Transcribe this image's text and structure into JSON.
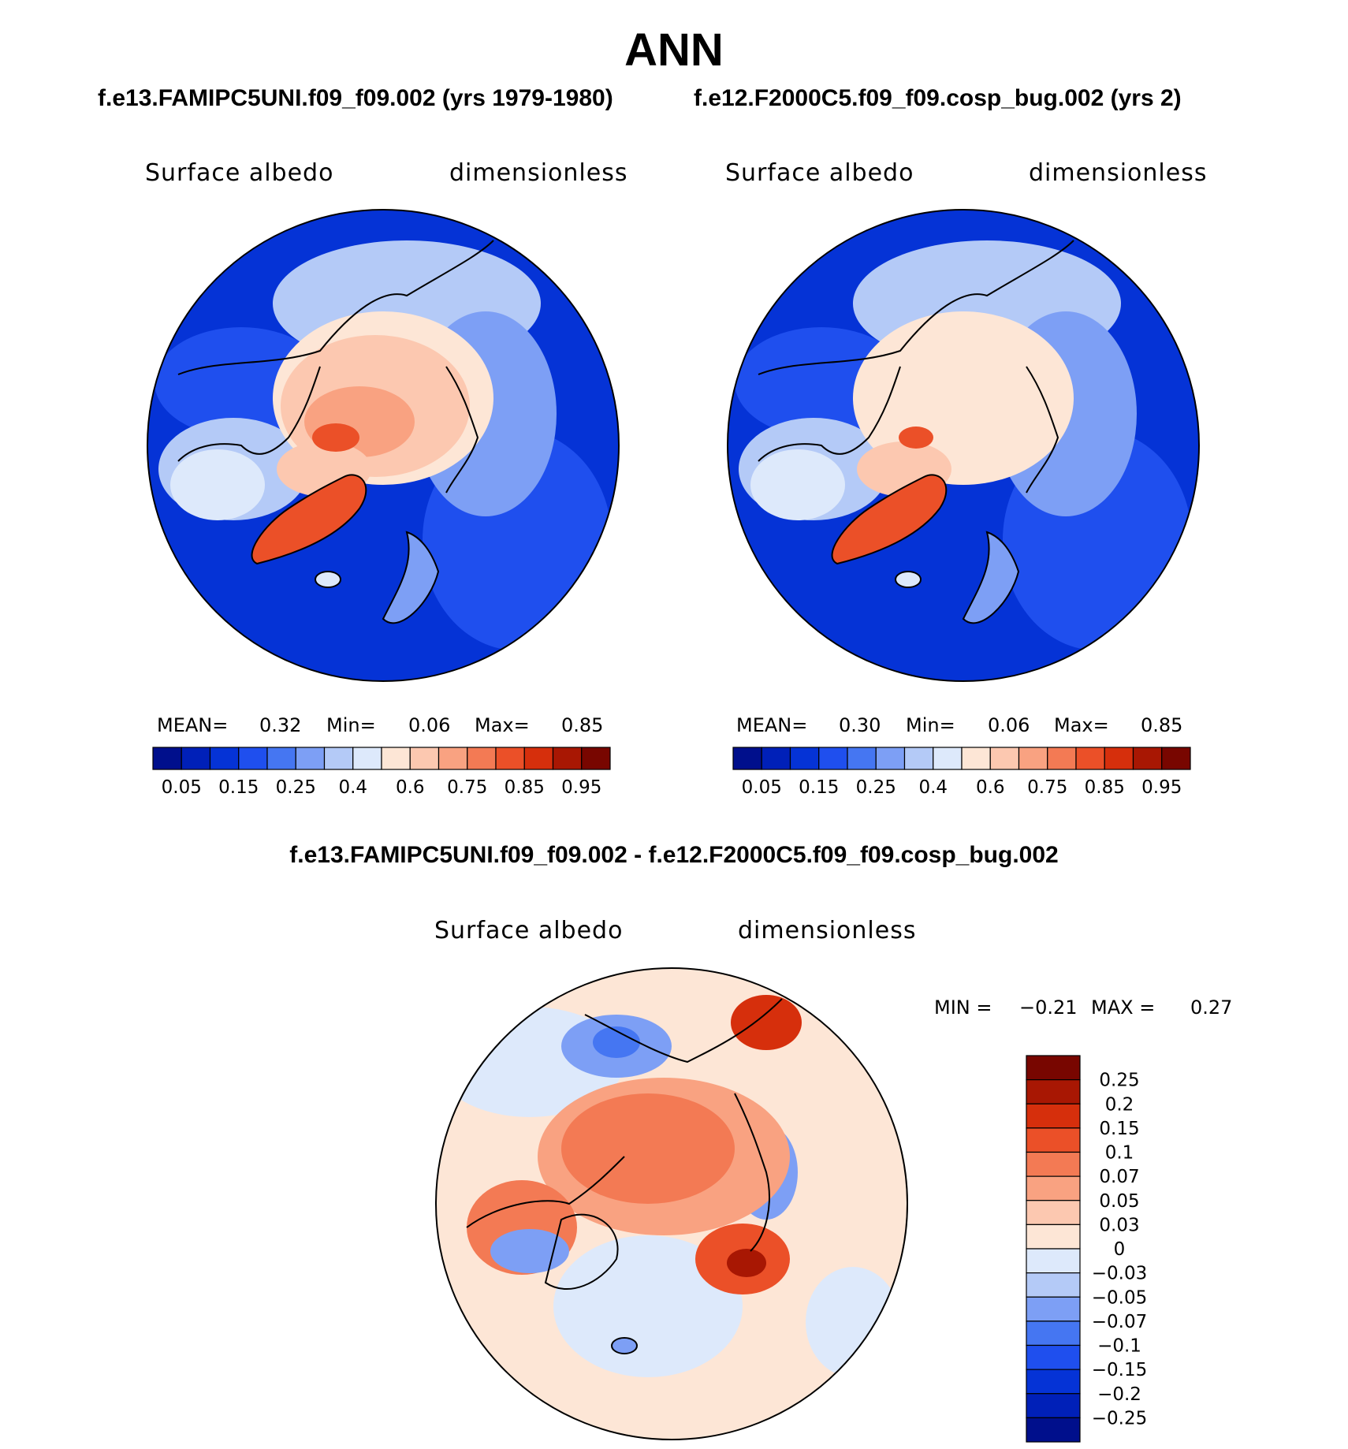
{
  "figure_title": "ANN",
  "case1_title": "f.e13.FAMIPC5UNI.f09_f09.002 (yrs 1979-1980)",
  "case2_title": "f.e12.F2000C5.f09_f09.cosp_bug.002 (yrs 2)",
  "diff_title": "f.e13.FAMIPC5UNI.f09_f09.002 - f.e12.F2000C5.f09_f09.cosp_bug.002",
  "colors": {
    "abs_scale": [
      "#000f8c",
      "#0020b8",
      "#0533d6",
      "#1f4fee",
      "#4576f2",
      "#7d9ff5",
      "#b4caf7",
      "#dde9fb",
      "#fde6d6",
      "#fcc8b0",
      "#f9a281",
      "#f37a54",
      "#eb5028",
      "#d62f0c",
      "#a81703",
      "#780600"
    ],
    "diff_scale": [
      "#000f8c",
      "#0020b8",
      "#0533d6",
      "#1f4fee",
      "#4576f2",
      "#7d9ff5",
      "#b4caf7",
      "#dde9fb",
      "#fde6d6",
      "#fcc8b0",
      "#f9a281",
      "#f37a54",
      "#eb5028",
      "#d62f0c",
      "#a81703",
      "#780600"
    ]
  },
  "chart_data": [
    {
      "type": "heatmap",
      "projection": "north polar stereographic",
      "variable": "Surface albedo",
      "units": "dimensionless",
      "mean_label": "MEAN=",
      "mean": "0.32",
      "min_label": "Min=",
      "min": "0.06",
      "max_label": "Max=",
      "max": "0.85",
      "colorbar_ticks": [
        "0.05",
        "0.15",
        "0.25",
        "0.4",
        "0.6",
        "0.75",
        "0.85",
        "0.95"
      ]
    },
    {
      "type": "heatmap",
      "projection": "north polar stereographic",
      "variable": "Surface albedo",
      "units": "dimensionless",
      "mean_label": "MEAN=",
      "mean": "0.30",
      "min_label": "Min=",
      "min": "0.06",
      "max_label": "Max=",
      "max": "0.85",
      "colorbar_ticks": [
        "0.05",
        "0.15",
        "0.25",
        "0.4",
        "0.6",
        "0.75",
        "0.85",
        "0.95"
      ]
    },
    {
      "type": "heatmap",
      "projection": "north polar stereographic",
      "variable": "Surface albedo",
      "units": "dimensionless",
      "min_label": "MIN =",
      "min": "−0.21",
      "max_label": "MAX =",
      "max": "0.27",
      "colorbar_ticks": [
        "0.25",
        "0.2",
        "0.15",
        "0.1",
        "0.07",
        "0.05",
        "0.03",
        "0",
        "−0.03",
        "−0.05",
        "−0.07",
        "−0.1",
        "−0.15",
        "−0.2",
        "−0.25"
      ]
    }
  ]
}
